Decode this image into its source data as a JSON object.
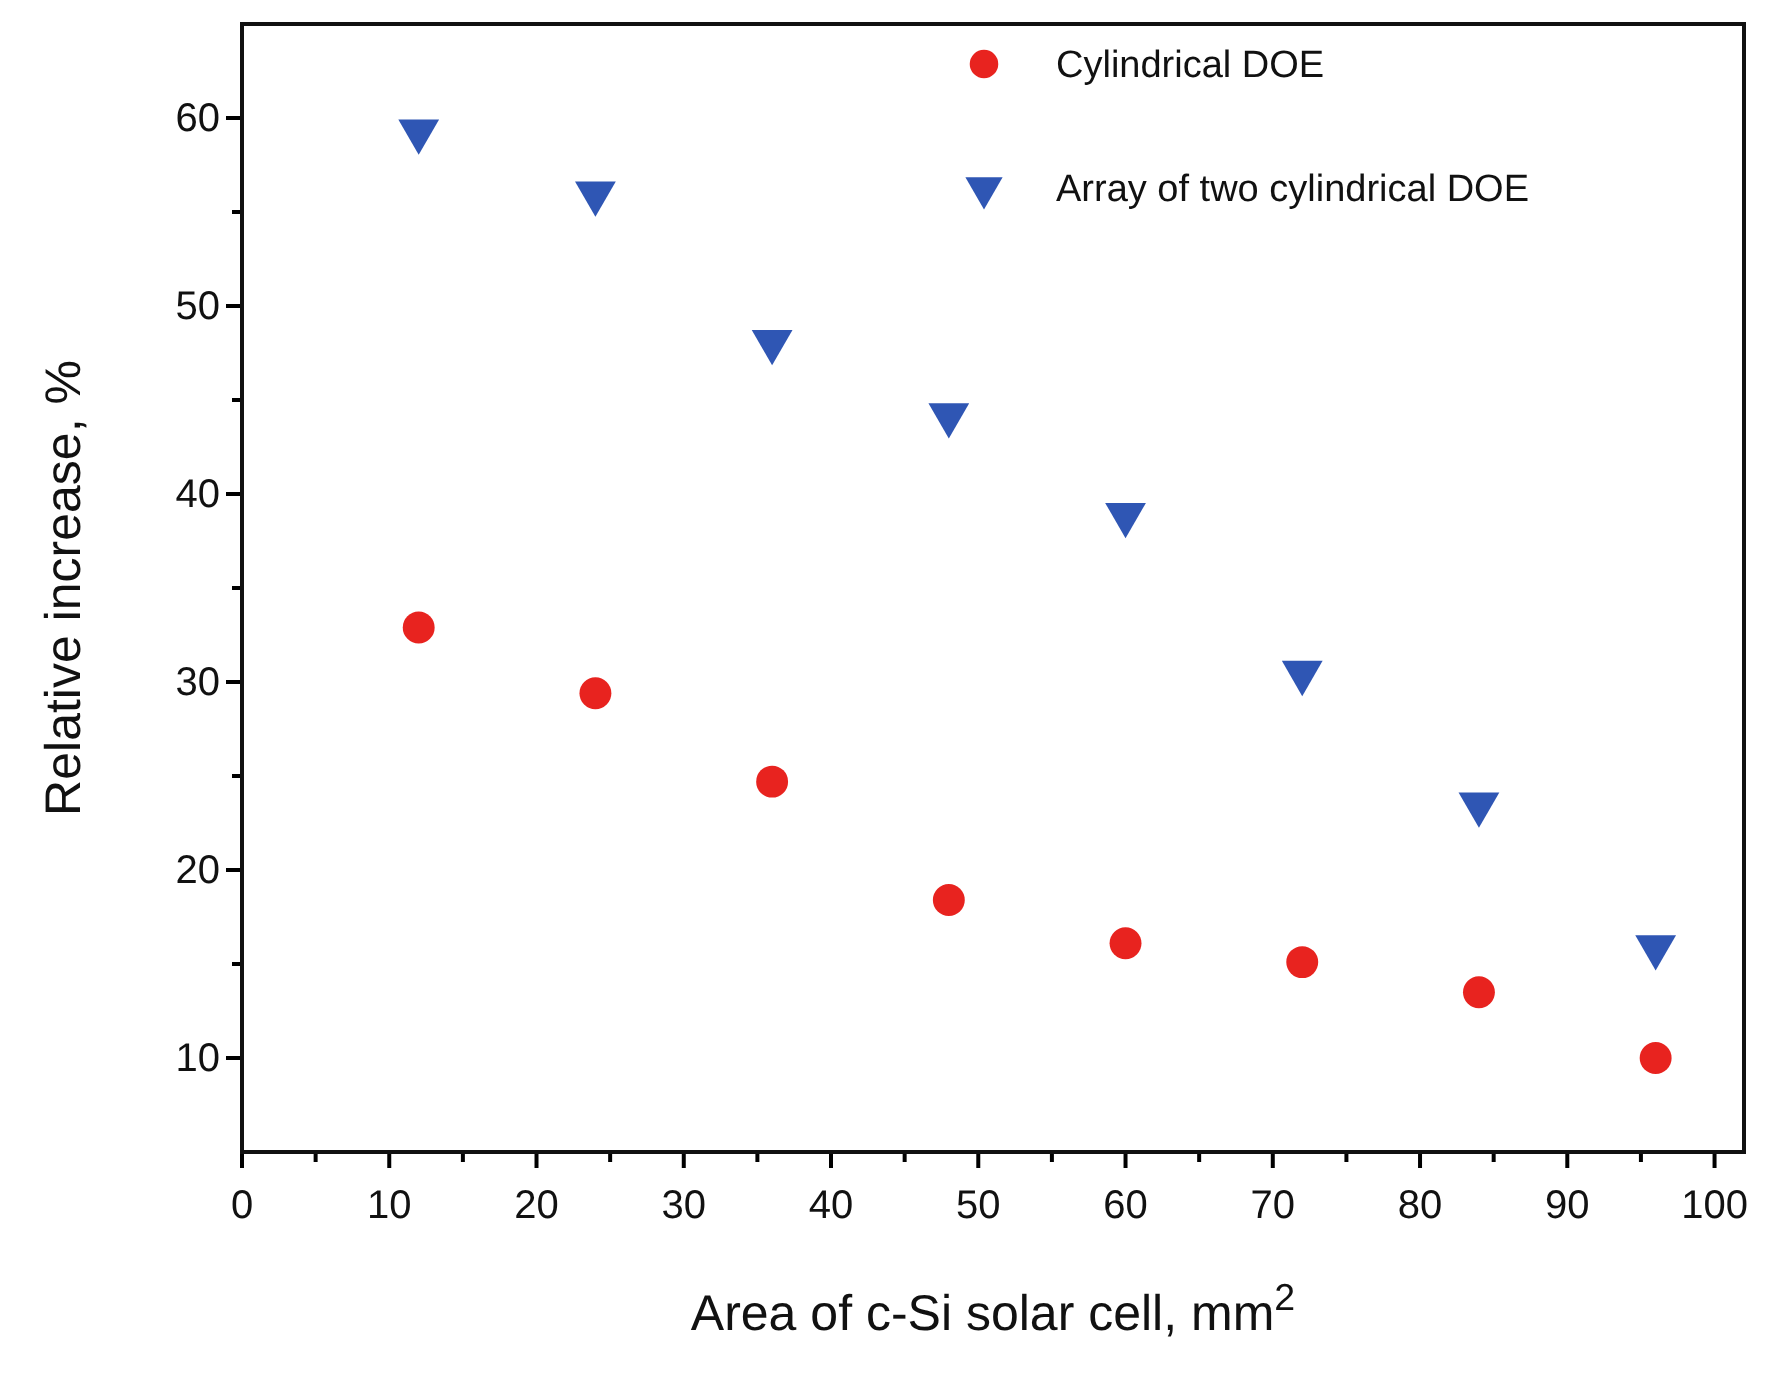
{
  "chart_data": {
    "type": "scatter",
    "xlabel": "Area of c-Si solar cell, mm$^{2}$",
    "ylabel": "Relative increase, %",
    "x": [
      12,
      24,
      36,
      48,
      60,
      72,
      84,
      96
    ],
    "series": [
      {
        "name": "Cylindrical DOE",
        "color": "#e8231f",
        "marker": "circle",
        "values": [
          32.9,
          29.4,
          24.7,
          18.4,
          16.1,
          15.1,
          13.5,
          10.0
        ]
      },
      {
        "name": "Array of two cylindrical DOE",
        "color": "#2f56b4",
        "marker": "triangle",
        "values": [
          59.3,
          56.0,
          48.1,
          44.2,
          38.9,
          30.5,
          23.5,
          15.9
        ]
      }
    ],
    "xlim": [
      0,
      102
    ],
    "ylim": [
      5,
      65
    ],
    "xticks": [
      0,
      {
        "value": 5,
        "label": null
      },
      10,
      {
        "value": 15,
        "label": null
      },
      20,
      {
        "value": 25,
        "label": null
      },
      30,
      {
        "value": 35,
        "label": null
      },
      40,
      {
        "value": 45,
        "label": null
      },
      50,
      {
        "value": 55,
        "label": null
      },
      60,
      {
        "value": 65,
        "label": null
      },
      70,
      {
        "value": 75,
        "label": null
      },
      80,
      {
        "value": 85,
        "label": null
      },
      90,
      {
        "value": 95,
        "label": null
      },
      100
    ],
    "yticks": [
      10,
      {
        "value": 15,
        "label": null
      },
      20,
      {
        "value": 25,
        "label": null
      },
      30,
      {
        "value": 35,
        "label": null
      },
      40,
      {
        "value": 45,
        "label": null
      },
      50,
      {
        "value": 55,
        "label": null
      },
      60
    ],
    "grid": false,
    "legend": "top right"
  }
}
